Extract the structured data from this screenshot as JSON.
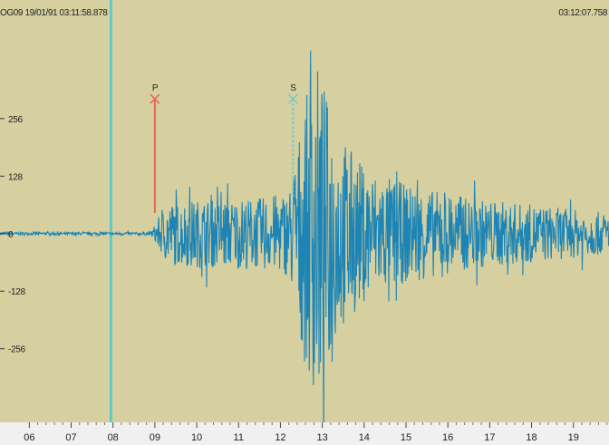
{
  "header": {
    "left_label": "OG09 19/01/91 03:11:58.878",
    "right_label": "03:12:07.758"
  },
  "colors": {
    "background": "#d6d0a0",
    "trace": "#1d84b5",
    "p_pick": "#e8655a",
    "s_pick": "#7ec8c2",
    "cursor": "#5fcaca",
    "axis_bar": "#f0f0f0"
  },
  "chart_data": {
    "type": "line",
    "title": "",
    "xlabel": "",
    "ylabel": "",
    "y_ticks": [
      256,
      128,
      0,
      -128,
      -256
    ],
    "y_tick_labels": [
      "256",
      "128",
      "0",
      "-128",
      "-256"
    ],
    "ylim": [
      -420,
      520
    ],
    "x_ticks": [
      6,
      7,
      8,
      9,
      10,
      11,
      12,
      13,
      14,
      15,
      16,
      17,
      18,
      19
    ],
    "x_tick_labels": [
      "06",
      "07",
      "08",
      "09",
      "10",
      "11",
      "12",
      "13",
      "14",
      "15",
      "16",
      "17",
      "18",
      "19"
    ],
    "xlim": [
      5.3,
      19.85
    ],
    "grid": false,
    "cursor_x": 7.95,
    "picks": [
      {
        "label": "P",
        "x": 9.0,
        "y_top": 300,
        "y_bottom": 46
      },
      {
        "label": "S",
        "x": 12.3,
        "y_top": 300,
        "y_bottom": 80
      }
    ],
    "series": [
      {
        "envelope": [
          {
            "x": 5.3,
            "amp": 3
          },
          {
            "x": 8.9,
            "amp": 3
          },
          {
            "x": 9.05,
            "amp": 30
          },
          {
            "x": 9.3,
            "amp": 70
          },
          {
            "x": 10.0,
            "amp": 75
          },
          {
            "x": 11.5,
            "amp": 80
          },
          {
            "x": 12.2,
            "amp": 95
          },
          {
            "x": 12.6,
            "amp": 300
          },
          {
            "x": 12.9,
            "amp": 380
          },
          {
            "x": 13.3,
            "amp": 240
          },
          {
            "x": 14.0,
            "amp": 150
          },
          {
            "x": 15.0,
            "amp": 110
          },
          {
            "x": 16.5,
            "amp": 80
          },
          {
            "x": 18.0,
            "amp": 65
          },
          {
            "x": 19.85,
            "amp": 45
          }
        ]
      }
    ]
  }
}
